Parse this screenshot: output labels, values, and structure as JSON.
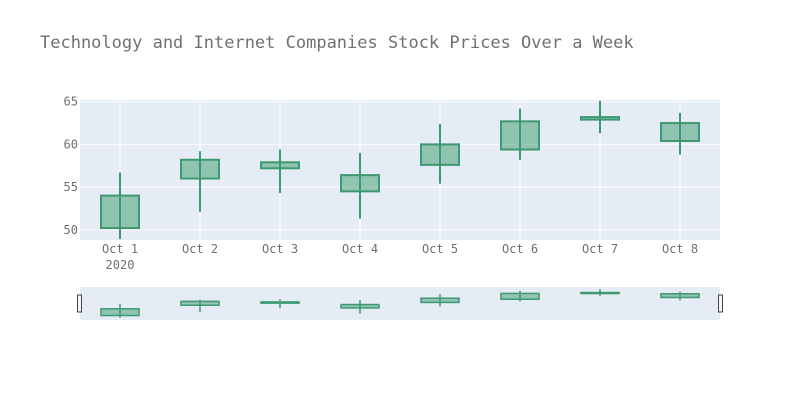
{
  "chart_data": {
    "type": "candlestick",
    "title": "Technology and Internet Companies Stock Prices Over a Week",
    "categories": [
      "Oct 1",
      "Oct 2",
      "Oct 3",
      "Oct 4",
      "Oct 5",
      "Oct 6",
      "Oct 7",
      "Oct 8"
    ],
    "year_label": "2020",
    "open": [
      50.2,
      56.0,
      57.2,
      54.5,
      57.6,
      59.4,
      62.9,
      60.4
    ],
    "high": [
      56.7,
      59.2,
      59.4,
      59.0,
      62.4,
      64.2,
      65.1,
      63.7
    ],
    "low": [
      48.9,
      52.1,
      54.3,
      51.3,
      55.4,
      58.2,
      61.3,
      58.8
    ],
    "close": [
      54.0,
      58.2,
      57.9,
      56.4,
      60.0,
      62.7,
      63.2,
      62.5
    ],
    "y_ticks": [
      50,
      55,
      60,
      65
    ],
    "ylim": [
      48.8,
      65.2
    ],
    "grid": true,
    "rangeslider": true,
    "colors": {
      "increasing_line": "#3D9970",
      "increasing_fill": "#3D9970",
      "plot_background": "#E5ECF6",
      "grid": "#FFFFFF",
      "text": "#707070"
    }
  }
}
